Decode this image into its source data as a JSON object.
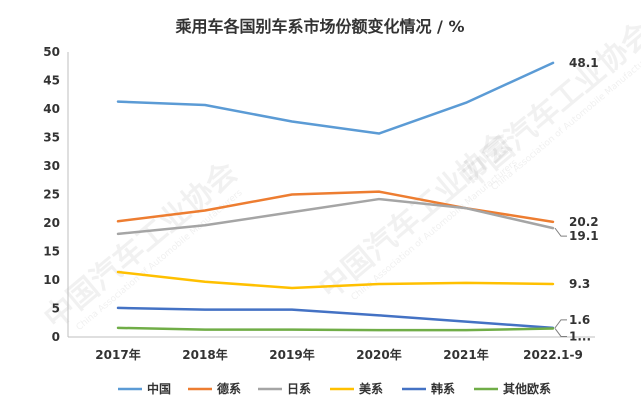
{
  "chart_data": {
    "type": "line",
    "title": "乘用车各国别车系市场份额变化情况 / %",
    "categories": [
      "2017年",
      "2018年",
      "2019年",
      "2020年",
      "2021年",
      "2022.1-9"
    ],
    "ylim": [
      0,
      50
    ],
    "yticks": [
      0,
      5,
      10,
      15,
      20,
      25,
      30,
      35,
      40,
      45,
      50
    ],
    "grid": false,
    "legend_position": "bottom",
    "series": [
      {
        "name": "中国",
        "color": "#5b9bd5",
        "values": [
          41.3,
          40.7,
          37.8,
          35.7,
          41.1,
          48.1
        ],
        "end_label": "48.1"
      },
      {
        "name": "德系",
        "color": "#ed7d31",
        "values": [
          20.3,
          22.2,
          25.0,
          25.5,
          22.6,
          20.2
        ],
        "end_label": "20.2"
      },
      {
        "name": "日系",
        "color": "#a5a5a5",
        "values": [
          18.1,
          19.6,
          21.9,
          24.2,
          22.6,
          19.1
        ],
        "end_label": "19.1"
      },
      {
        "name": "美系",
        "color": "#ffc000",
        "values": [
          11.4,
          9.7,
          8.6,
          9.3,
          9.5,
          9.3
        ],
        "end_label": "9.3"
      },
      {
        "name": "韩系",
        "color": "#4472c4",
        "values": [
          5.1,
          4.8,
          4.8,
          3.8,
          2.7,
          1.6
        ],
        "end_label": "1.6"
      },
      {
        "name": "其他欧系",
        "color": "#70ad47",
        "values": [
          1.6,
          1.3,
          1.3,
          1.2,
          1.2,
          1.5
        ],
        "end_label": "1..."
      }
    ]
  },
  "watermark": {
    "text": "中国汽车工业协会",
    "subtext": "China Association of Automobile Manufacturers"
  }
}
